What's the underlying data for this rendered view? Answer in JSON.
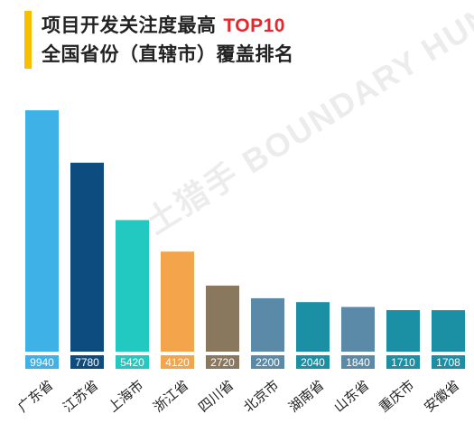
{
  "title": {
    "line1_prefix": "项目开发关注度最高 ",
    "line1_accent": "TOP10",
    "line2": "全国省份（直辖市）覆盖排名"
  },
  "watermark": "土猎手 BOUNDARY HUNTER",
  "chart_data": {
    "type": "bar",
    "categories": [
      "广东省",
      "江苏省",
      "上海市",
      "浙江省",
      "四川省",
      "北京市",
      "湖南省",
      "山东省",
      "重庆市",
      "安徽省"
    ],
    "values": [
      9940,
      7780,
      5420,
      4120,
      2720,
      2200,
      2040,
      1840,
      1710,
      1708
    ],
    "colors": [
      "#3eb1e6",
      "#0d4c7f",
      "#22c9c1",
      "#f4a44a",
      "#8a785e",
      "#5b8aa8",
      "#1b8fa3",
      "#5b8aa8",
      "#1b8fa3",
      "#1b8fa3"
    ],
    "title": "项目开发关注度最高 TOP10 全国省份（直辖市）覆盖排名",
    "xlabel": "",
    "ylabel": "",
    "ylim": [
      0,
      9940
    ]
  }
}
